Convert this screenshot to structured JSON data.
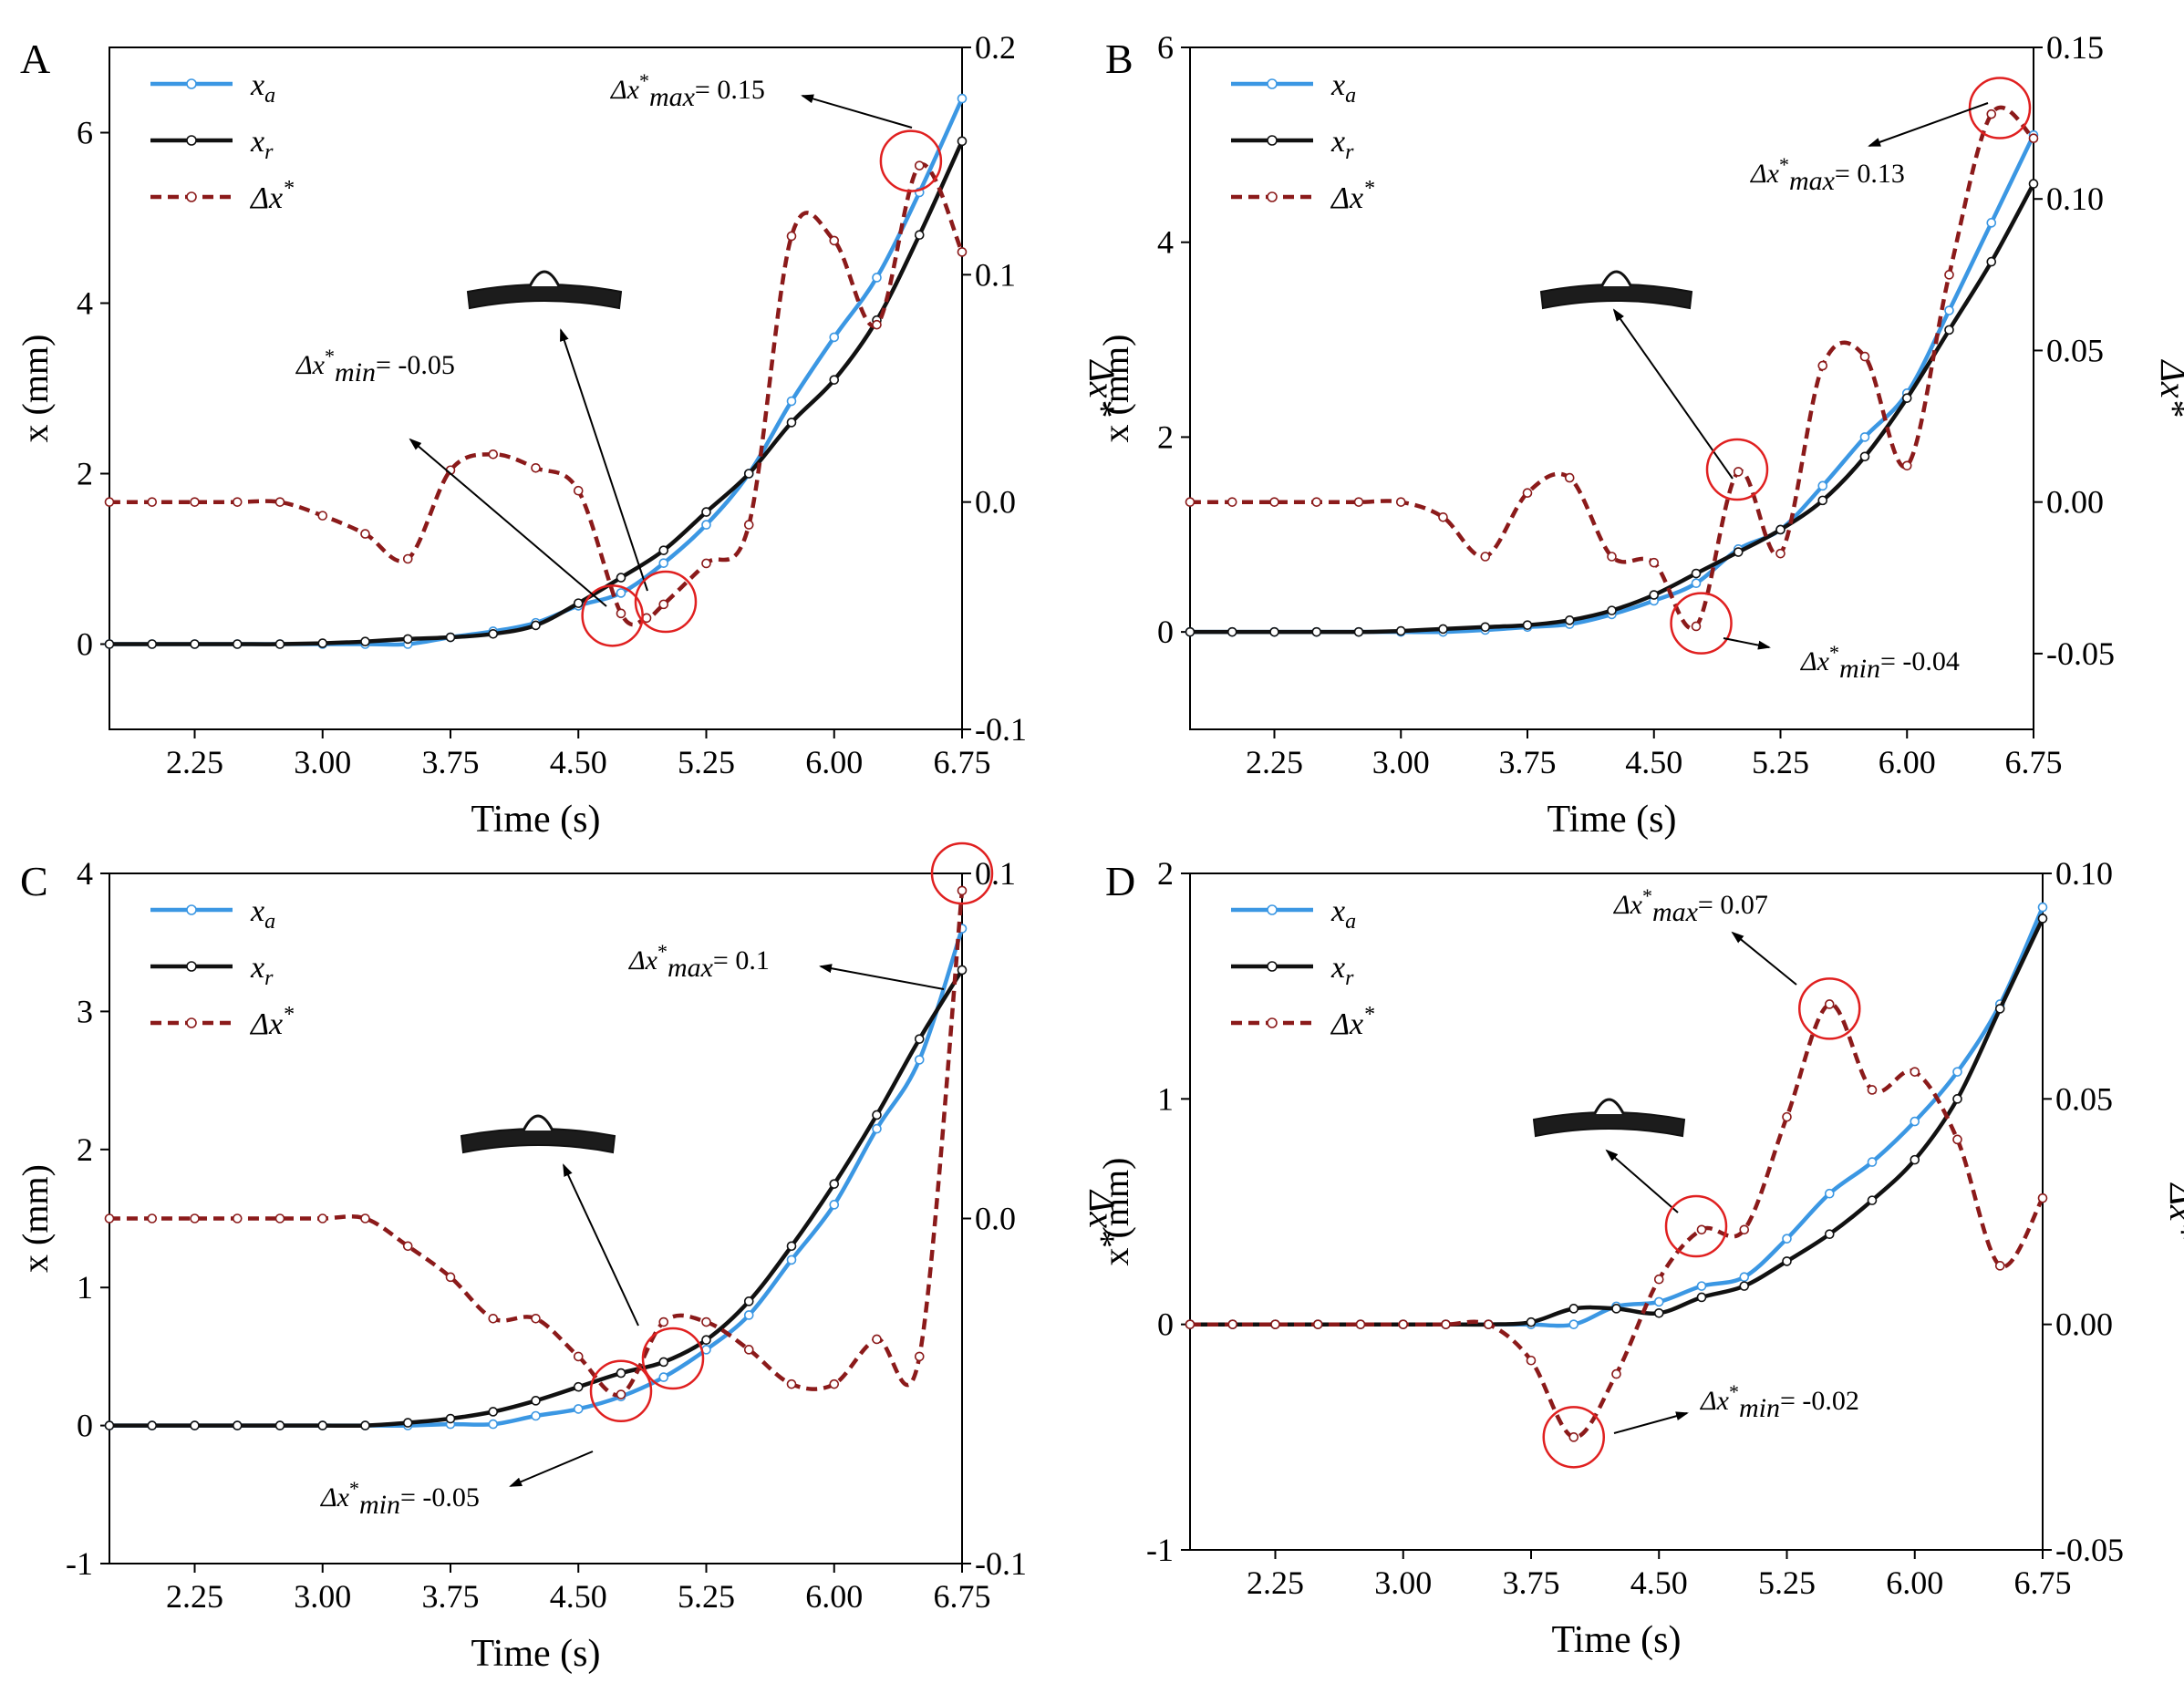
{
  "chart_data": [
    {
      "panel": "A",
      "type": "line",
      "xlabel": "Time (s)",
      "ylabel": "x (mm)",
      "y2label": "Δx*",
      "xlim": [
        1.75,
        6.75
      ],
      "ylim": [
        -1,
        7
      ],
      "y2lim": [
        -0.1,
        0.2
      ],
      "xticks": [
        "2.25",
        "3.00",
        "3.75",
        "4.50",
        "5.25",
        "6.00",
        "6.75"
      ],
      "yticks": [
        "0",
        "2",
        "4",
        "6"
      ],
      "y2ticks": [
        "-0.1",
        "0.0",
        "0.1",
        "0.2"
      ],
      "legend": [
        "x_a",
        "x_r",
        "Δx*"
      ],
      "legend_position": "top-left",
      "series": [
        {
          "name": "x_a",
          "axis": "left",
          "color": "#3b97e3",
          "x": [
            1.75,
            2.0,
            2.25,
            2.5,
            2.75,
            3.0,
            3.25,
            3.5,
            3.75,
            4.0,
            4.25,
            4.5,
            4.75,
            5.0,
            5.25,
            5.5,
            5.75,
            6.0,
            6.25,
            6.5,
            6.75
          ],
          "values": [
            0,
            0,
            0,
            0,
            0,
            0,
            0,
            0,
            0.08,
            0.15,
            0.25,
            0.45,
            0.6,
            0.95,
            1.4,
            2.0,
            2.85,
            3.6,
            4.3,
            5.3,
            6.4
          ]
        },
        {
          "name": "x_r",
          "axis": "left",
          "color": "#111111",
          "x": [
            1.75,
            2.0,
            2.25,
            2.5,
            2.75,
            3.0,
            3.25,
            3.5,
            3.75,
            4.0,
            4.25,
            4.5,
            4.75,
            5.0,
            5.25,
            5.5,
            5.75,
            6.0,
            6.25,
            6.5,
            6.75
          ],
          "values": [
            0,
            0,
            0,
            0,
            0,
            0.01,
            0.03,
            0.06,
            0.08,
            0.12,
            0.22,
            0.48,
            0.78,
            1.1,
            1.55,
            2.0,
            2.6,
            3.1,
            3.8,
            4.8,
            5.9
          ]
        },
        {
          "name": "Δx*",
          "axis": "right",
          "color": "#8b1a1a",
          "x": [
            1.75,
            2.0,
            2.25,
            2.5,
            2.75,
            3.0,
            3.25,
            3.5,
            3.75,
            4.0,
            4.25,
            4.5,
            4.75,
            4.9,
            5.0,
            5.25,
            5.5,
            5.75,
            6.0,
            6.25,
            6.5,
            6.75
          ],
          "values": [
            0,
            0,
            0,
            0,
            0,
            -0.006,
            -0.014,
            -0.025,
            0.014,
            0.021,
            0.015,
            0.005,
            -0.049,
            -0.051,
            -0.045,
            -0.027,
            -0.01,
            0.117,
            0.115,
            0.078,
            0.148,
            0.11
          ]
        }
      ],
      "annotations": [
        {
          "text_main": "Δx*",
          "text_sub": "max",
          "text_val": "= 0.15",
          "x": 6.45,
          "y2": 0.15
        },
        {
          "text_main": "Δx*",
          "text_sub": "min",
          "text_val": "= -0.05",
          "x": 4.7,
          "y2": -0.05
        }
      ]
    },
    {
      "panel": "B",
      "type": "line",
      "xlabel": "Time (s)",
      "ylabel": "x (mm)",
      "y2label": "Δx*",
      "xlim": [
        1.75,
        6.75
      ],
      "ylim": [
        -1,
        6
      ],
      "y2lim": [
        -0.075,
        0.15
      ],
      "xticks": [
        "2.25",
        "3.00",
        "3.75",
        "4.50",
        "5.25",
        "6.00",
        "6.75"
      ],
      "yticks": [
        "0",
        "2",
        "4",
        "6"
      ],
      "y2ticks": [
        "-0.05",
        "0.00",
        "0.05",
        "0.10",
        "0.15"
      ],
      "legend": [
        "x_a",
        "x_r",
        "Δx*"
      ],
      "legend_position": "top-left",
      "series": [
        {
          "name": "x_a",
          "axis": "left",
          "color": "#3b97e3",
          "x": [
            1.75,
            2.0,
            2.25,
            2.5,
            2.75,
            3.0,
            3.25,
            3.5,
            3.75,
            4.0,
            4.25,
            4.5,
            4.75,
            5.0,
            5.25,
            5.5,
            5.75,
            6.0,
            6.25,
            6.5,
            6.75
          ],
          "values": [
            0,
            0,
            0,
            0,
            0,
            0,
            0,
            0.02,
            0.05,
            0.08,
            0.18,
            0.32,
            0.5,
            0.85,
            1.05,
            1.5,
            2.0,
            2.45,
            3.3,
            4.2,
            5.1
          ]
        },
        {
          "name": "x_r",
          "axis": "left",
          "color": "#111111",
          "x": [
            1.75,
            2.0,
            2.25,
            2.5,
            2.75,
            3.0,
            3.25,
            3.5,
            3.75,
            4.0,
            4.25,
            4.5,
            4.75,
            5.0,
            5.25,
            5.5,
            5.75,
            6.0,
            6.25,
            6.5,
            6.75
          ],
          "values": [
            0,
            0,
            0,
            0,
            0,
            0.01,
            0.03,
            0.05,
            0.07,
            0.12,
            0.22,
            0.38,
            0.6,
            0.82,
            1.05,
            1.35,
            1.8,
            2.4,
            3.1,
            3.8,
            4.6
          ]
        },
        {
          "name": "Δx*",
          "axis": "right",
          "color": "#8b1a1a",
          "x": [
            1.75,
            2.0,
            2.25,
            2.5,
            2.75,
            3.0,
            3.25,
            3.5,
            3.75,
            4.0,
            4.25,
            4.5,
            4.75,
            5.0,
            5.25,
            5.5,
            5.75,
            6.0,
            6.25,
            6.5,
            6.75
          ],
          "values": [
            0,
            0,
            0,
            0,
            0,
            0,
            -0.005,
            -0.018,
            0.003,
            0.008,
            -0.018,
            -0.02,
            -0.041,
            0.01,
            -0.017,
            0.045,
            0.048,
            0.012,
            0.075,
            0.128,
            0.12
          ]
        }
      ],
      "annotations": [
        {
          "text_main": "Δx*",
          "text_sub": "max",
          "text_val": "= 0.13",
          "x": 6.55,
          "y2": 0.13
        },
        {
          "text_main": "Δx*",
          "text_sub": "min",
          "text_val": "= -0.04",
          "x": 4.78,
          "y2": -0.04
        }
      ]
    },
    {
      "panel": "C",
      "type": "line",
      "xlabel": "Time (s)",
      "ylabel": "x (mm)",
      "y2label": "Δx*",
      "xlim": [
        1.75,
        6.75
      ],
      "ylim": [
        -1,
        4
      ],
      "y2lim": [
        -0.1,
        0.1
      ],
      "xticks": [
        "2.25",
        "3.00",
        "3.75",
        "4.50",
        "5.25",
        "6.00",
        "6.75"
      ],
      "yticks": [
        "-1",
        "0",
        "1",
        "2",
        "3",
        "4"
      ],
      "y2ticks": [
        "-0.1",
        "0.0",
        "0.1"
      ],
      "legend": [
        "x_a",
        "x_r",
        "Δx*"
      ],
      "legend_position": "top-left",
      "series": [
        {
          "name": "x_a",
          "axis": "left",
          "color": "#3b97e3",
          "x": [
            1.75,
            2.0,
            2.25,
            2.5,
            2.75,
            3.0,
            3.25,
            3.5,
            3.75,
            4.0,
            4.25,
            4.5,
            4.75,
            5.0,
            5.25,
            5.5,
            5.75,
            6.0,
            6.25,
            6.5,
            6.75
          ],
          "values": [
            0,
            0,
            0,
            0,
            0,
            0,
            0,
            0,
            0.01,
            0.01,
            0.07,
            0.12,
            0.21,
            0.35,
            0.55,
            0.8,
            1.2,
            1.6,
            2.15,
            2.65,
            3.6
          ]
        },
        {
          "name": "x_r",
          "axis": "left",
          "color": "#111111",
          "x": [
            1.75,
            2.0,
            2.25,
            2.5,
            2.75,
            3.0,
            3.25,
            3.5,
            3.75,
            4.0,
            4.25,
            4.5,
            4.75,
            5.0,
            5.25,
            5.5,
            5.75,
            6.0,
            6.25,
            6.5,
            6.75
          ],
          "values": [
            0,
            0,
            0,
            0,
            0,
            0,
            0,
            0.02,
            0.05,
            0.1,
            0.18,
            0.28,
            0.38,
            0.46,
            0.62,
            0.9,
            1.3,
            1.75,
            2.25,
            2.8,
            3.3
          ]
        },
        {
          "name": "Δx*",
          "axis": "right",
          "color": "#8b1a1a",
          "x": [
            1.75,
            2.0,
            2.25,
            2.5,
            2.75,
            3.0,
            3.25,
            3.5,
            3.75,
            4.0,
            4.25,
            4.5,
            4.75,
            5.0,
            5.25,
            5.5,
            5.75,
            6.0,
            6.25,
            6.5,
            6.75
          ],
          "values": [
            0,
            0,
            0,
            0,
            0,
            0,
            0,
            -0.008,
            -0.017,
            -0.029,
            -0.029,
            -0.04,
            -0.051,
            -0.03,
            -0.03,
            -0.038,
            -0.048,
            -0.048,
            -0.035,
            -0.04,
            0.095
          ]
        }
      ],
      "annotations": [
        {
          "text_main": "Δx*",
          "text_sub": "max",
          "text_val": "= 0.1",
          "x": 6.75,
          "y2": 0.1
        },
        {
          "text_main": "Δx*",
          "text_sub": "min",
          "text_val": "= -0.05",
          "x": 4.75,
          "y2": -0.05
        }
      ]
    },
    {
      "panel": "D",
      "type": "line",
      "xlabel": "Time (s)",
      "ylabel": "x (mm)",
      "y2label": "Δx*",
      "xlim": [
        1.75,
        6.75
      ],
      "ylim": [
        -1,
        2
      ],
      "y2lim": [
        -0.05,
        0.1
      ],
      "xticks": [
        "2.25",
        "3.00",
        "3.75",
        "4.50",
        "5.25",
        "6.00",
        "6.75"
      ],
      "yticks": [
        "-1",
        "0",
        "1",
        "2"
      ],
      "y2ticks": [
        "-0.05",
        "0.00",
        "0.05",
        "0.10"
      ],
      "legend": [
        "x_a",
        "x_r",
        "Δx*"
      ],
      "legend_position": "top-left",
      "series": [
        {
          "name": "x_a",
          "axis": "left",
          "color": "#3b97e3",
          "x": [
            1.75,
            2.0,
            2.25,
            2.5,
            2.75,
            3.0,
            3.25,
            3.5,
            3.75,
            4.0,
            4.25,
            4.5,
            4.75,
            5.0,
            5.25,
            5.5,
            5.75,
            6.0,
            6.25,
            6.5,
            6.75
          ],
          "values": [
            0,
            0,
            0,
            0,
            0,
            0,
            0,
            0,
            0,
            0,
            0.08,
            0.1,
            0.17,
            0.21,
            0.38,
            0.58,
            0.72,
            0.9,
            1.12,
            1.42,
            1.85
          ]
        },
        {
          "name": "x_r",
          "axis": "left",
          "color": "#111111",
          "x": [
            1.75,
            2.0,
            2.25,
            2.5,
            2.75,
            3.0,
            3.25,
            3.5,
            3.75,
            4.0,
            4.25,
            4.5,
            4.75,
            5.0,
            5.25,
            5.5,
            5.75,
            6.0,
            6.25,
            6.5,
            6.75
          ],
          "values": [
            0,
            0,
            0,
            0,
            0,
            0,
            0,
            0,
            0.01,
            0.07,
            0.07,
            0.05,
            0.12,
            0.17,
            0.28,
            0.4,
            0.55,
            0.73,
            1.0,
            1.4,
            1.8
          ]
        },
        {
          "name": "Δx*",
          "axis": "right",
          "color": "#8b1a1a",
          "x": [
            1.75,
            2.0,
            2.25,
            2.5,
            2.75,
            3.0,
            3.25,
            3.5,
            3.75,
            4.0,
            4.25,
            4.5,
            4.75,
            5.0,
            5.25,
            5.5,
            5.75,
            6.0,
            6.25,
            6.5,
            6.75
          ],
          "values": [
            0,
            0,
            0,
            0,
            0,
            0,
            0,
            0,
            -0.008,
            -0.025,
            -0.011,
            0.01,
            0.021,
            0.021,
            0.046,
            0.071,
            0.052,
            0.056,
            0.041,
            0.013,
            0.028
          ]
        }
      ],
      "annotations": [
        {
          "text_main": "Δx*",
          "text_sub": "max",
          "text_val": "= 0.07",
          "x": 5.5,
          "y2": 0.07
        },
        {
          "text_main": "Δx*",
          "text_sub": "min",
          "text_val": "= -0.02",
          "x": 4.0,
          "y2": -0.025
        }
      ]
    }
  ]
}
